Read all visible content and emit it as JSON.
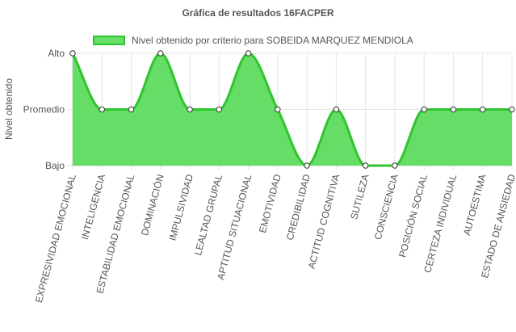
{
  "chart_data": {
    "type": "line",
    "title": "Gráfica de resultados 16FACPER",
    "ylabel": "Nivel obtenido",
    "xlabel": "",
    "y_levels": [
      "Bajo",
      "Promedio",
      "Alto"
    ],
    "ylim": [
      0,
      2
    ],
    "grid": true,
    "legend_position": "top",
    "categories": [
      "EXPRESIVIDAD EMOCIONAL",
      "INTELIGENCIA",
      "ESTABILIDAD EMOCIONAL",
      "DOMINACIÓN",
      "IMPULSIVIDAD",
      "LEALTAD GRUPAL",
      "APTITUD SITUACIONAL",
      "EMOTIVIDAD",
      "CREDIBILIDAD",
      "ACTITUD COGNITIVA",
      "SUTILEZA",
      "CONSCIENCIA",
      "POSICIÓN SOCIAL",
      "CERTEZA INDIVIDUAL",
      "AUTOESTIMA",
      "ESTADO DE ANSIEDAD"
    ],
    "series": [
      {
        "name": "Nivel obtenido por criterio para SOBEIDA MARQUEZ MENDIOLA",
        "values": [
          2,
          1,
          1,
          2,
          1,
          1,
          2,
          1,
          0,
          1,
          0,
          0,
          1,
          1,
          1,
          1
        ],
        "line_color": "#2ec52e",
        "fill_color": "#66dd66"
      }
    ]
  }
}
